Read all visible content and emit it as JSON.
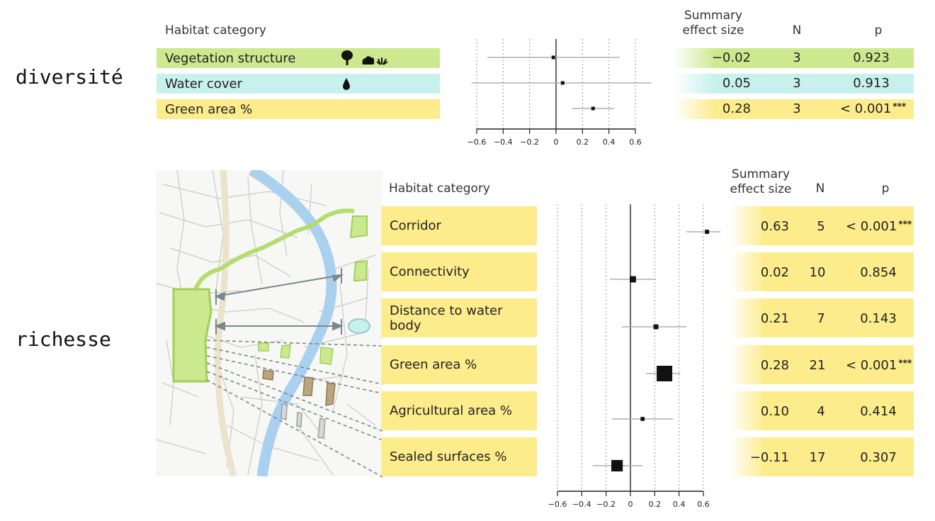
{
  "labels": {
    "diversity": "diversité",
    "richness": "richesse"
  },
  "headers": {
    "category": "Habitat category",
    "effect_line1": "Summary",
    "effect_line2": "effect size",
    "n": "N",
    "p": "p"
  },
  "colors": {
    "green": "#cde98f",
    "cyan": "#c8f0ec",
    "yellow": "#fcec8c",
    "ci": "#aab0ad",
    "zero": "#666666",
    "marker": "#111111"
  },
  "icons": {
    "vegetation": [
      "tree-icon",
      "shrub-icon",
      "grass-icon"
    ],
    "water": "water-drop-icon"
  },
  "chart_data": [
    {
      "type": "forest",
      "xlim": [
        -0.6,
        0.6
      ],
      "xticks": [
        "−0.6",
        "−0.4",
        "−0.2",
        "0",
        "0.2",
        "0.4",
        "0.6"
      ],
      "rows": [
        {
          "category": "Vegetation structure",
          "effect": -0.02,
          "ci": [
            -0.52,
            0.48
          ],
          "effect_label": "−0.02",
          "n": "3",
          "p": "0.923",
          "stars": "",
          "color": "green"
        },
        {
          "category": "Water cover",
          "effect": 0.05,
          "ci": [
            -0.64,
            0.72
          ],
          "effect_label": "0.05",
          "n": "3",
          "p": "0.913",
          "stars": "",
          "color": "cyan"
        },
        {
          "category": "Green area %",
          "effect": 0.28,
          "ci": [
            0.12,
            0.44
          ],
          "effect_label": "0.28",
          "n": "3",
          "p": "< 0.001",
          "stars": "***",
          "color": "yellow"
        }
      ]
    },
    {
      "type": "forest",
      "xlim": [
        -0.6,
        0.6
      ],
      "xticks": [
        "−0.6",
        "−0.4",
        "−0.2",
        "0",
        "0.2",
        "0.4",
        "0.6"
      ],
      "rows": [
        {
          "category": "Corridor",
          "effect": 0.63,
          "ci": [
            0.46,
            0.74
          ],
          "effect_label": "0.63",
          "n": "5",
          "p": "< 0.001",
          "stars": "***",
          "color": "yellow"
        },
        {
          "category": "Connectivity",
          "effect": 0.02,
          "ci": [
            -0.17,
            0.21
          ],
          "effect_label": "0.02",
          "n": "10",
          "p": "0.854",
          "stars": "",
          "color": "yellow"
        },
        {
          "category": "Distance to water body",
          "effect": 0.21,
          "ci": [
            -0.07,
            0.46
          ],
          "effect_label": "0.21",
          "n": "7",
          "p": "0.143",
          "stars": "",
          "color": "yellow"
        },
        {
          "category": "Green area %",
          "effect": 0.28,
          "ci": [
            0.13,
            0.41
          ],
          "effect_label": "0.28",
          "n": "21",
          "p": "< 0.001",
          "stars": "***",
          "color": "yellow"
        },
        {
          "category": "Agricultural area %",
          "effect": 0.1,
          "ci": [
            -0.15,
            0.35
          ],
          "effect_label": "0.10",
          "n": "4",
          "p": "0.414",
          "stars": "",
          "color": "yellow"
        },
        {
          "category": "Sealed surfaces %",
          "effect": -0.11,
          "ci": [
            -0.31,
            0.1
          ],
          "effect_label": "−0.11",
          "n": "17",
          "p": "0.307",
          "stars": "",
          "color": "yellow"
        }
      ]
    }
  ]
}
